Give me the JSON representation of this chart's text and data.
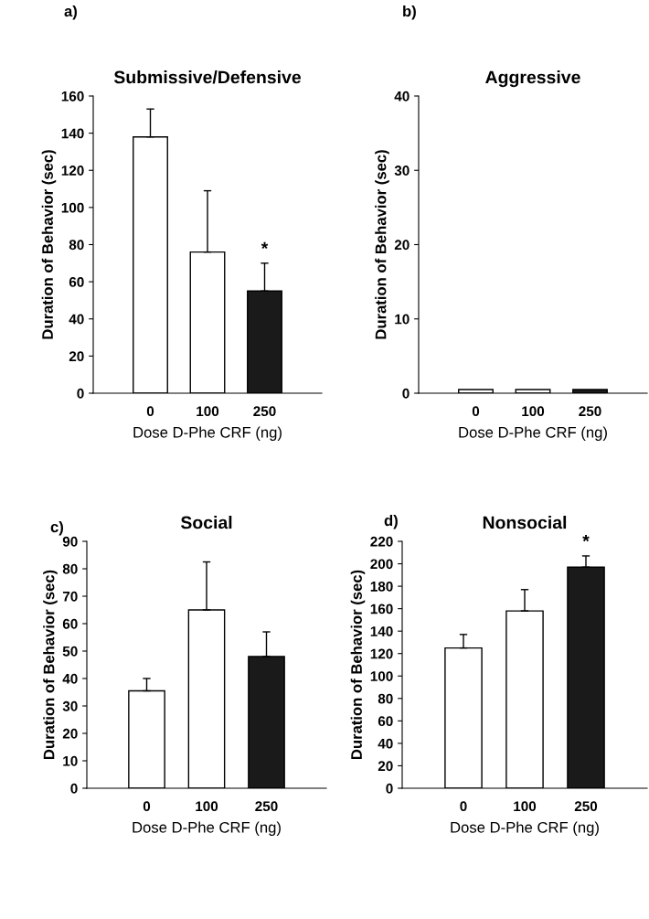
{
  "chart_data": [
    {
      "type": "bar",
      "title": "Submissive/Defensive",
      "xlabel": "Dose D-Phe CRF (ng)",
      "ylabel": "Duration of Behavior (sec)",
      "annotations": [
        "a)",
        {
          "text": "*",
          "x": "250",
          "y": 70
        }
      ],
      "categories": [
        "0",
        "100",
        "250"
      ],
      "values": [
        138,
        76,
        55
      ],
      "errors": [
        15,
        33,
        15
      ],
      "colors": [
        "#ffffff",
        "#ffffff",
        "#1a1a1a"
      ],
      "ylim": [
        0,
        160
      ],
      "yticks": [
        0,
        20,
        40,
        60,
        80,
        100,
        120,
        140,
        160
      ],
      "grid": false,
      "legend": false
    },
    {
      "type": "bar",
      "title": "Aggressive",
      "xlabel": "Dose D-Phe CRF (ng)",
      "ylabel": "Duration of Behavior (sec)",
      "annotations": [
        "b)"
      ],
      "categories": [
        "0",
        "100",
        "250"
      ],
      "values": [
        0.5,
        0.5,
        0.5
      ],
      "colors": [
        "#ffffff",
        "#ffffff",
        "#1a1a1a"
      ],
      "ylim": [
        0,
        40
      ],
      "yticks": [
        0,
        10,
        20,
        30,
        40
      ],
      "grid": false,
      "legend": false
    },
    {
      "type": "bar",
      "title": "Social",
      "xlabel": "Dose D-Phe CRF (ng)",
      "ylabel": "Duration of Behavior (sec)",
      "annotations": [
        "c)"
      ],
      "categories": [
        "0",
        "100",
        "250"
      ],
      "values": [
        35.5,
        65,
        48
      ],
      "errors": [
        4.5,
        17.5,
        9
      ],
      "colors": [
        "#ffffff",
        "#ffffff",
        "#1a1a1a"
      ],
      "ylim": [
        0,
        90
      ],
      "yticks": [
        0,
        10,
        20,
        30,
        40,
        50,
        60,
        70,
        80,
        90
      ],
      "grid": false,
      "legend": false
    },
    {
      "type": "bar",
      "title": "Nonsocial",
      "xlabel": "Dose D-Phe CRF (ng)",
      "ylabel": "Duration of Behavior (sec)",
      "annotations": [
        "d)",
        {
          "text": "*",
          "x": "250",
          "y": 207
        }
      ],
      "categories": [
        "0",
        "100",
        "250"
      ],
      "values": [
        125,
        158,
        197
      ],
      "errors": [
        12,
        19,
        10
      ],
      "colors": [
        "#ffffff",
        "#ffffff",
        "#1a1a1a"
      ],
      "ylim": [
        0,
        220
      ],
      "yticks": [
        0,
        20,
        40,
        60,
        80,
        100,
        120,
        140,
        160,
        180,
        200,
        220
      ],
      "grid": false,
      "legend": false
    }
  ]
}
